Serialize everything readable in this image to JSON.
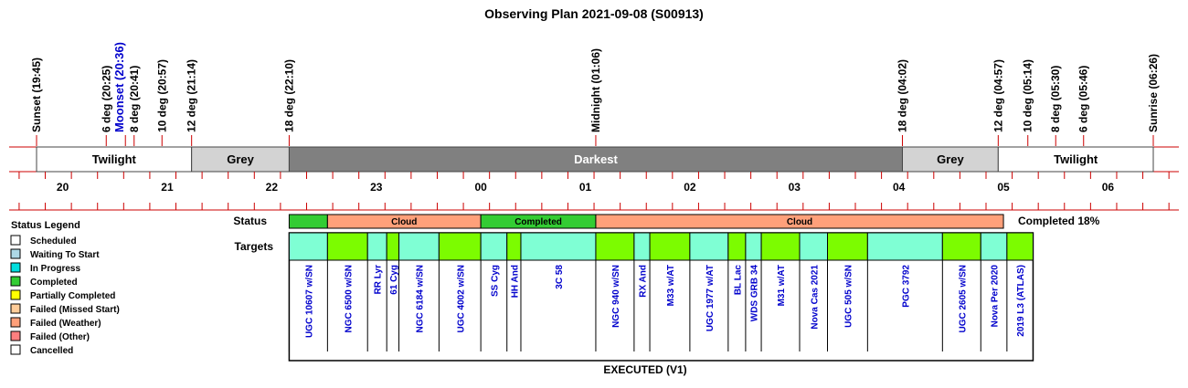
{
  "chart_data": {
    "type": "timeline",
    "title": "Observing Plan 2021-09-08 (S00913)",
    "axis": {
      "start": "19:35",
      "end": "06:35",
      "hour_ticks": [
        "20",
        "21",
        "22",
        "23",
        "00",
        "01",
        "02",
        "03",
        "04",
        "05",
        "06"
      ]
    },
    "events": [
      {
        "time": "19:45",
        "label": "Sunset (19:45)",
        "moon": false
      },
      {
        "time": "20:25",
        "label": "6 deg (20:25)",
        "moon": false
      },
      {
        "time": "20:36",
        "label": "Moonset (20:36)",
        "moon": true
      },
      {
        "time": "20:41",
        "label": "8 deg (20:41)",
        "moon": false
      },
      {
        "time": "20:57",
        "label": "10 deg (20:57)",
        "moon": false
      },
      {
        "time": "21:14",
        "label": "12 deg (21:14)",
        "moon": false
      },
      {
        "time": "22:10",
        "label": "18 deg (22:10)",
        "moon": false
      },
      {
        "time": "01:06",
        "label": "Midnight (01:06)",
        "moon": false
      },
      {
        "time": "04:02",
        "label": "18 deg (04:02)",
        "moon": false
      },
      {
        "time": "04:57",
        "label": "12 deg (04:57)",
        "moon": false
      },
      {
        "time": "05:14",
        "label": "10 deg (05:14)",
        "moon": false
      },
      {
        "time": "05:30",
        "label": "8 deg (05:30)",
        "moon": false
      },
      {
        "time": "05:46",
        "label": "6 deg (05:46)",
        "moon": false
      },
      {
        "time": "06:26",
        "label": "Sunrise (06:26)",
        "moon": false
      }
    ],
    "sky_bands": [
      {
        "label": "Twilight",
        "start": "19:45",
        "end": "21:14",
        "color": "#ffffff",
        "text_color": "#000000"
      },
      {
        "label": "Grey",
        "start": "21:14",
        "end": "22:10",
        "color": "#d3d3d3",
        "text_color": "#000000"
      },
      {
        "label": "Darkest",
        "start": "22:10",
        "end": "04:02",
        "color": "#808080",
        "text_color": "#ffffff"
      },
      {
        "label": "Grey",
        "start": "04:02",
        "end": "04:57",
        "color": "#d3d3d3",
        "text_color": "#000000"
      },
      {
        "label": "Twilight",
        "start": "04:57",
        "end": "06:26",
        "color": "#ffffff",
        "text_color": "#000000"
      }
    ],
    "rows": {
      "status_label": "Status",
      "targets_label": "Targets"
    },
    "status_blocks": [
      {
        "start": "22:10",
        "end": "22:32",
        "label": "",
        "color": "#33cc33"
      },
      {
        "start": "22:32",
        "end": "00:00",
        "label": "Cloud",
        "color": "#ffa07a"
      },
      {
        "start": "00:00",
        "end": "01:06",
        "label": "Completed",
        "color": "#33cc33"
      },
      {
        "start": "01:06",
        "end": "05:00",
        "label": "Cloud",
        "color": "#ffa07a"
      }
    ],
    "targets": [
      {
        "name": "UGC 10607 w/SN",
        "start": "22:10",
        "end": "22:32",
        "color": "#7fffd4"
      },
      {
        "name": "NGC 6500 w/SN",
        "start": "22:32",
        "end": "22:55",
        "color": "#7cfc00"
      },
      {
        "name": "RR Lyr",
        "start": "22:55",
        "end": "23:06",
        "color": "#7fffd4"
      },
      {
        "name": "61 Cyg",
        "start": "23:06",
        "end": "23:13",
        "color": "#7cfc00"
      },
      {
        "name": "NGC 6184 w/SN",
        "start": "23:13",
        "end": "23:36",
        "color": "#7fffd4"
      },
      {
        "name": "UGC 4002 w/SN",
        "start": "23:36",
        "end": "00:00",
        "color": "#7cfc00"
      },
      {
        "name": "SS Cyg",
        "start": "00:00",
        "end": "00:15",
        "color": "#7fffd4"
      },
      {
        "name": "HH And",
        "start": "00:15",
        "end": "00:23",
        "color": "#7cfc00"
      },
      {
        "name": "3C 58",
        "start": "00:23",
        "end": "01:06",
        "color": "#7fffd4"
      },
      {
        "name": "NGC 940 w/SN",
        "start": "01:06",
        "end": "01:28",
        "color": "#7cfc00"
      },
      {
        "name": "RX And",
        "start": "01:28",
        "end": "01:37",
        "color": "#7fffd4"
      },
      {
        "name": "M33 w/AT",
        "start": "01:37",
        "end": "02:00",
        "color": "#7cfc00"
      },
      {
        "name": "UGC 1977 w/AT",
        "start": "02:00",
        "end": "02:22",
        "color": "#7fffd4"
      },
      {
        "name": "BL Lac",
        "start": "02:22",
        "end": "02:32",
        "color": "#7cfc00"
      },
      {
        "name": "WDS GRB 34",
        "start": "02:32",
        "end": "02:41",
        "color": "#7fffd4"
      },
      {
        "name": "M31 w/AT",
        "start": "02:41",
        "end": "03:03",
        "color": "#7cfc00"
      },
      {
        "name": "Nova Cas 2021",
        "start": "03:03",
        "end": "03:19",
        "color": "#7fffd4"
      },
      {
        "name": "UGC 505 w/SN",
        "start": "03:19",
        "end": "03:42",
        "color": "#7cfc00"
      },
      {
        "name": "PGC 3792",
        "start": "03:42",
        "end": "04:25",
        "color": "#7fffd4"
      },
      {
        "name": "UGC 2605 w/SN",
        "start": "04:25",
        "end": "04:47",
        "color": "#7cfc00"
      },
      {
        "name": "Nova Per 2020",
        "start": "04:47",
        "end": "05:02",
        "color": "#7fffd4"
      },
      {
        "name": "2019 L3 (ATLAS)",
        "start": "05:02",
        "end": "05:17",
        "color": "#7cfc00"
      }
    ],
    "completion_text": "Completed 18%",
    "footer_label": "EXECUTED (V1)",
    "legend": {
      "title": "Status Legend",
      "items": [
        {
          "label": "Scheduled",
          "color": "#ffffff"
        },
        {
          "label": "Waiting To Start",
          "color": "#add8e6"
        },
        {
          "label": "In Progress",
          "color": "#00dddd"
        },
        {
          "label": "Completed",
          "color": "#33cc33"
        },
        {
          "label": "Partially Completed",
          "color": "#ffff00"
        },
        {
          "label": "Failed (Missed Start)",
          "color": "#ffcc99"
        },
        {
          "label": "Failed (Weather)",
          "color": "#ffa07a"
        },
        {
          "label": "Failed (Other)",
          "color": "#ff7f7f"
        },
        {
          "label": "Cancelled",
          "color": "#ffffff"
        }
      ]
    },
    "colors": {
      "axis_red": "#cc0000",
      "target_text": "#0000cc"
    }
  }
}
